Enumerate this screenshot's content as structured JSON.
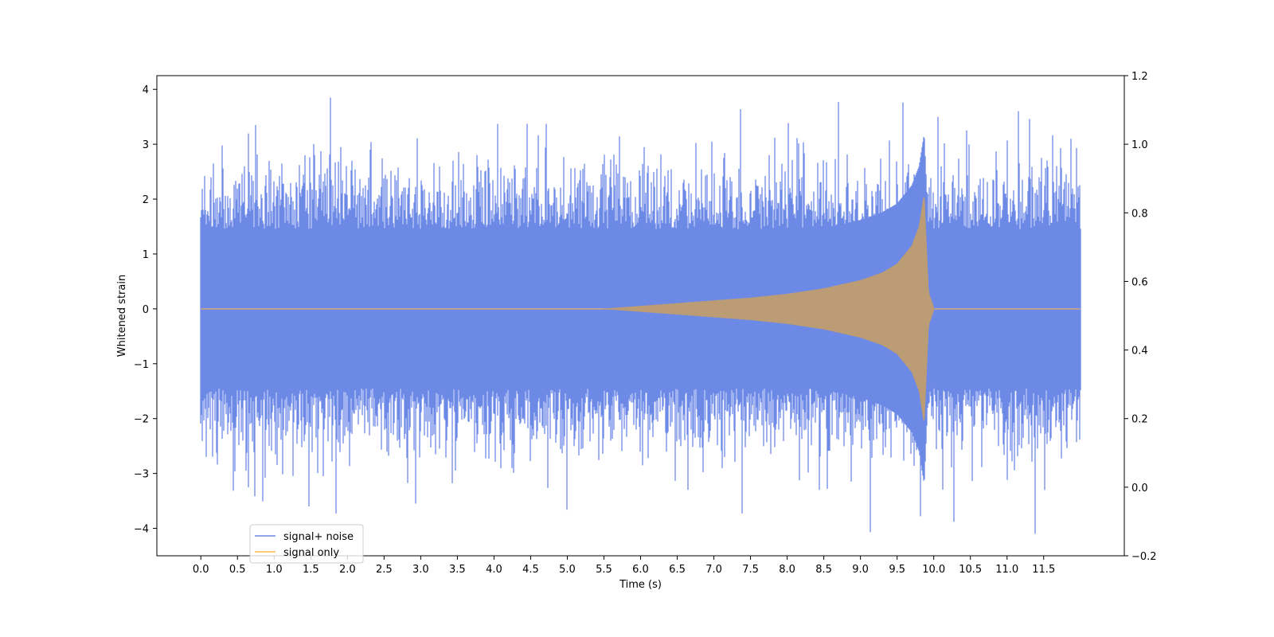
{
  "chart_data": {
    "type": "line",
    "title": "",
    "xlabel": "Time (s)",
    "ylabel": "Whitened strain",
    "xlim": [
      -0.6,
      12.6
    ],
    "ylim": [
      -4.5,
      4.25
    ],
    "y2lim": [
      -0.2,
      1.2
    ],
    "x_ticks": [
      0.0,
      0.5,
      1.0,
      1.5,
      2.0,
      2.5,
      3.0,
      3.5,
      4.0,
      4.5,
      5.0,
      5.5,
      6.0,
      6.5,
      7.0,
      7.5,
      8.0,
      8.5,
      9.0,
      9.5,
      10.0,
      10.5,
      11.0,
      11.5
    ],
    "x_tick_labels": [
      "0.0",
      "0.5",
      "1.0",
      "1.5",
      "2.0",
      "2.5",
      "3.0",
      "3.5",
      "4.0",
      "4.5",
      "5.0",
      "5.5",
      "6.0",
      "6.5",
      "7.0",
      "7.5",
      "8.0",
      "8.5",
      "9.0",
      "9.5",
      "10.0",
      "10.5",
      "11.0",
      "11.5"
    ],
    "y_ticks": [
      -4,
      -3,
      -2,
      -1,
      0,
      1,
      2,
      3,
      4
    ],
    "y_tick_labels": [
      "−4",
      "−3",
      "−2",
      "−1",
      "0",
      "1",
      "2",
      "3",
      "4"
    ],
    "y2_ticks": [
      -0.2,
      0.0,
      0.2,
      0.4,
      0.6,
      0.8,
      1.0,
      1.2
    ],
    "y2_tick_labels": [
      "−0.2",
      "0.0",
      "0.2",
      "0.4",
      "0.6",
      "0.8",
      "1.0",
      "1.2"
    ],
    "grid": false,
    "legend_position": "lower-left",
    "series": [
      {
        "name": "signal+ noise",
        "color": "#6d89e6",
        "description": "Gaussian noise of roughly unit variance over 0 to 12 s, peaks up to ~3.85 and troughs down to ~-4.1, with the chirp signal added",
        "x_range": [
          0.0,
          12.0
        ],
        "peaks": [
          [
            1.77,
            3.85
          ],
          [
            8.7,
            3.77
          ],
          [
            9.58,
            3.76
          ],
          [
            4.05,
            3.37
          ],
          [
            0.75,
            3.35
          ],
          [
            11.31,
            3.46
          ],
          [
            10.06,
            3.5
          ],
          [
            11.95,
            2.93
          ]
        ],
        "troughs": [
          [
            9.13,
            -4.07
          ],
          [
            11.38,
            -4.1
          ],
          [
            1.84,
            -3.73
          ],
          [
            7.38,
            -3.73
          ],
          [
            10.28,
            -3.88
          ],
          [
            0.85,
            -3.51
          ],
          [
            2.93,
            -3.55
          ],
          [
            1.47,
            -3.6
          ],
          [
            5.0,
            -3.66
          ]
        ]
      },
      {
        "name": "signal only",
        "color": "#ffb84d",
        "description": "Chirp waveform: amplitude ~0 before ~5.5 s, rising to ~2.1 at merger near 9.87 s, ringdown to ~0 by ~10.0 s",
        "chirp_start": 5.5,
        "merger_time": 9.87,
        "peak_amplitude": 2.1,
        "ringdown_end": 10.0,
        "envelope": [
          [
            5.5,
            0.0
          ],
          [
            6.0,
            0.05
          ],
          [
            6.5,
            0.1
          ],
          [
            7.0,
            0.15
          ],
          [
            7.5,
            0.2
          ],
          [
            8.0,
            0.27
          ],
          [
            8.5,
            0.37
          ],
          [
            9.0,
            0.52
          ],
          [
            9.3,
            0.66
          ],
          [
            9.5,
            0.82
          ],
          [
            9.7,
            1.15
          ],
          [
            9.8,
            1.5
          ],
          [
            9.87,
            2.1
          ],
          [
            9.93,
            0.3
          ],
          [
            10.0,
            0.03
          ]
        ]
      }
    ]
  }
}
